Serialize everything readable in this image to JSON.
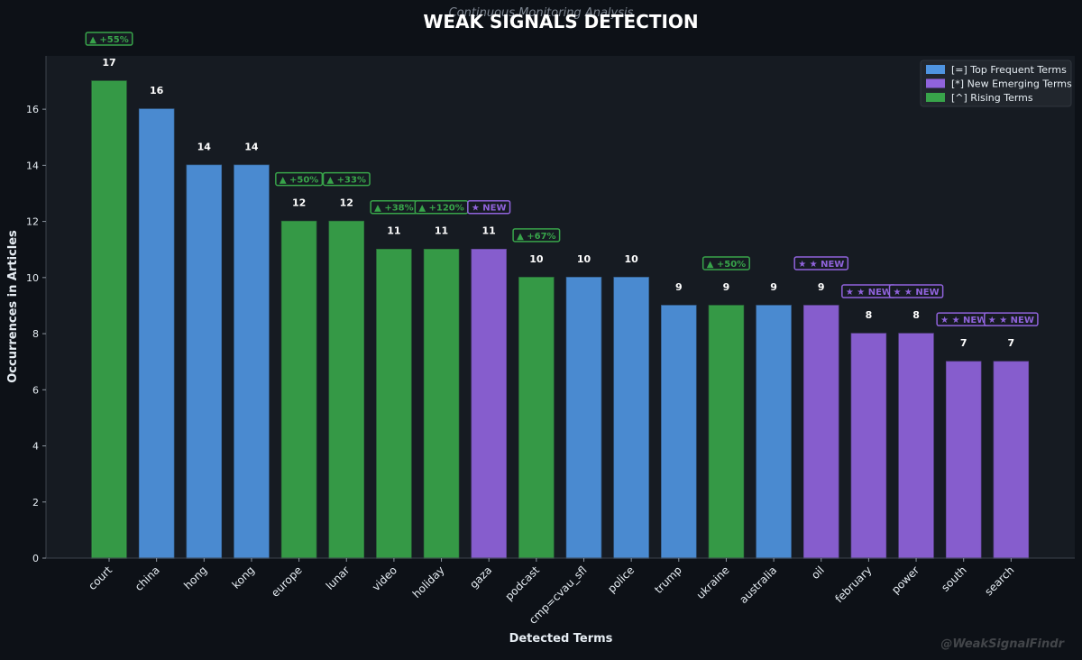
{
  "chart_data": {
    "type": "bar",
    "subtitle": "Continuous Monitoring Analysis",
    "title": "WEAK SIGNALS DETECTION",
    "xlabel": "Detected Terms",
    "ylabel": "Occurrences in Articles",
    "ylim": [
      0,
      17.9
    ],
    "yticks": [
      0,
      2,
      4,
      6,
      8,
      10,
      12,
      14,
      16
    ],
    "grid": false,
    "legend_position": "top-right",
    "legend": [
      {
        "label": "[=] Top Frequent Terms",
        "category": "frequent"
      },
      {
        "label": "[*] New Emerging Terms",
        "category": "emerging"
      },
      {
        "label": "[^] Rising Terms",
        "category": "rising"
      }
    ],
    "colors": {
      "frequent": "#4f94e0",
      "emerging": "#9063dc",
      "rising": "#38a44a",
      "background": "#0d1117",
      "plot_background": "#161b22"
    },
    "categories": [
      "court",
      "china",
      "hong",
      "kong",
      "europe",
      "lunar",
      "video",
      "holiday",
      "gaza",
      "podcast",
      "cmp=cvau_sfl",
      "police",
      "trump",
      "ukraine",
      "australia",
      "oil",
      "february",
      "power",
      "south",
      "search"
    ],
    "values": [
      17,
      16,
      14,
      14,
      12,
      12,
      11,
      11,
      11,
      10,
      10,
      10,
      9,
      9,
      9,
      9,
      8,
      8,
      7,
      7
    ],
    "bar_types": [
      "rising",
      "frequent",
      "frequent",
      "frequent",
      "rising",
      "rising",
      "rising",
      "rising",
      "emerging",
      "rising",
      "frequent",
      "frequent",
      "frequent",
      "rising",
      "frequent",
      "emerging",
      "emerging",
      "emerging",
      "emerging",
      "emerging"
    ],
    "badges": [
      {
        "index": 0,
        "text": "▲ +55%",
        "kind": "rising"
      },
      {
        "index": 4,
        "text": "▲ +50%",
        "kind": "rising"
      },
      {
        "index": 5,
        "text": "▲ +33%",
        "kind": "rising"
      },
      {
        "index": 6,
        "text": "▲ +38%",
        "kind": "rising"
      },
      {
        "index": 7,
        "text": "▲ +120%",
        "kind": "rising"
      },
      {
        "index": 8,
        "text": "★ NEW",
        "kind": "emerging"
      },
      {
        "index": 9,
        "text": "▲ +67%",
        "kind": "rising"
      },
      {
        "index": 13,
        "text": "▲ +50%",
        "kind": "rising"
      },
      {
        "index": 15,
        "text": "★ ★ NEW",
        "kind": "emerging"
      },
      {
        "index": 16,
        "text": "★ ★ NEW",
        "kind": "emerging"
      },
      {
        "index": 17,
        "text": "★ ★ NEW",
        "kind": "emerging"
      },
      {
        "index": 18,
        "text": "★ ★ NEW",
        "kind": "emerging"
      },
      {
        "index": 19,
        "text": "★ ★ NEW",
        "kind": "emerging"
      }
    ]
  },
  "watermark": "@WeakSignalFindr"
}
